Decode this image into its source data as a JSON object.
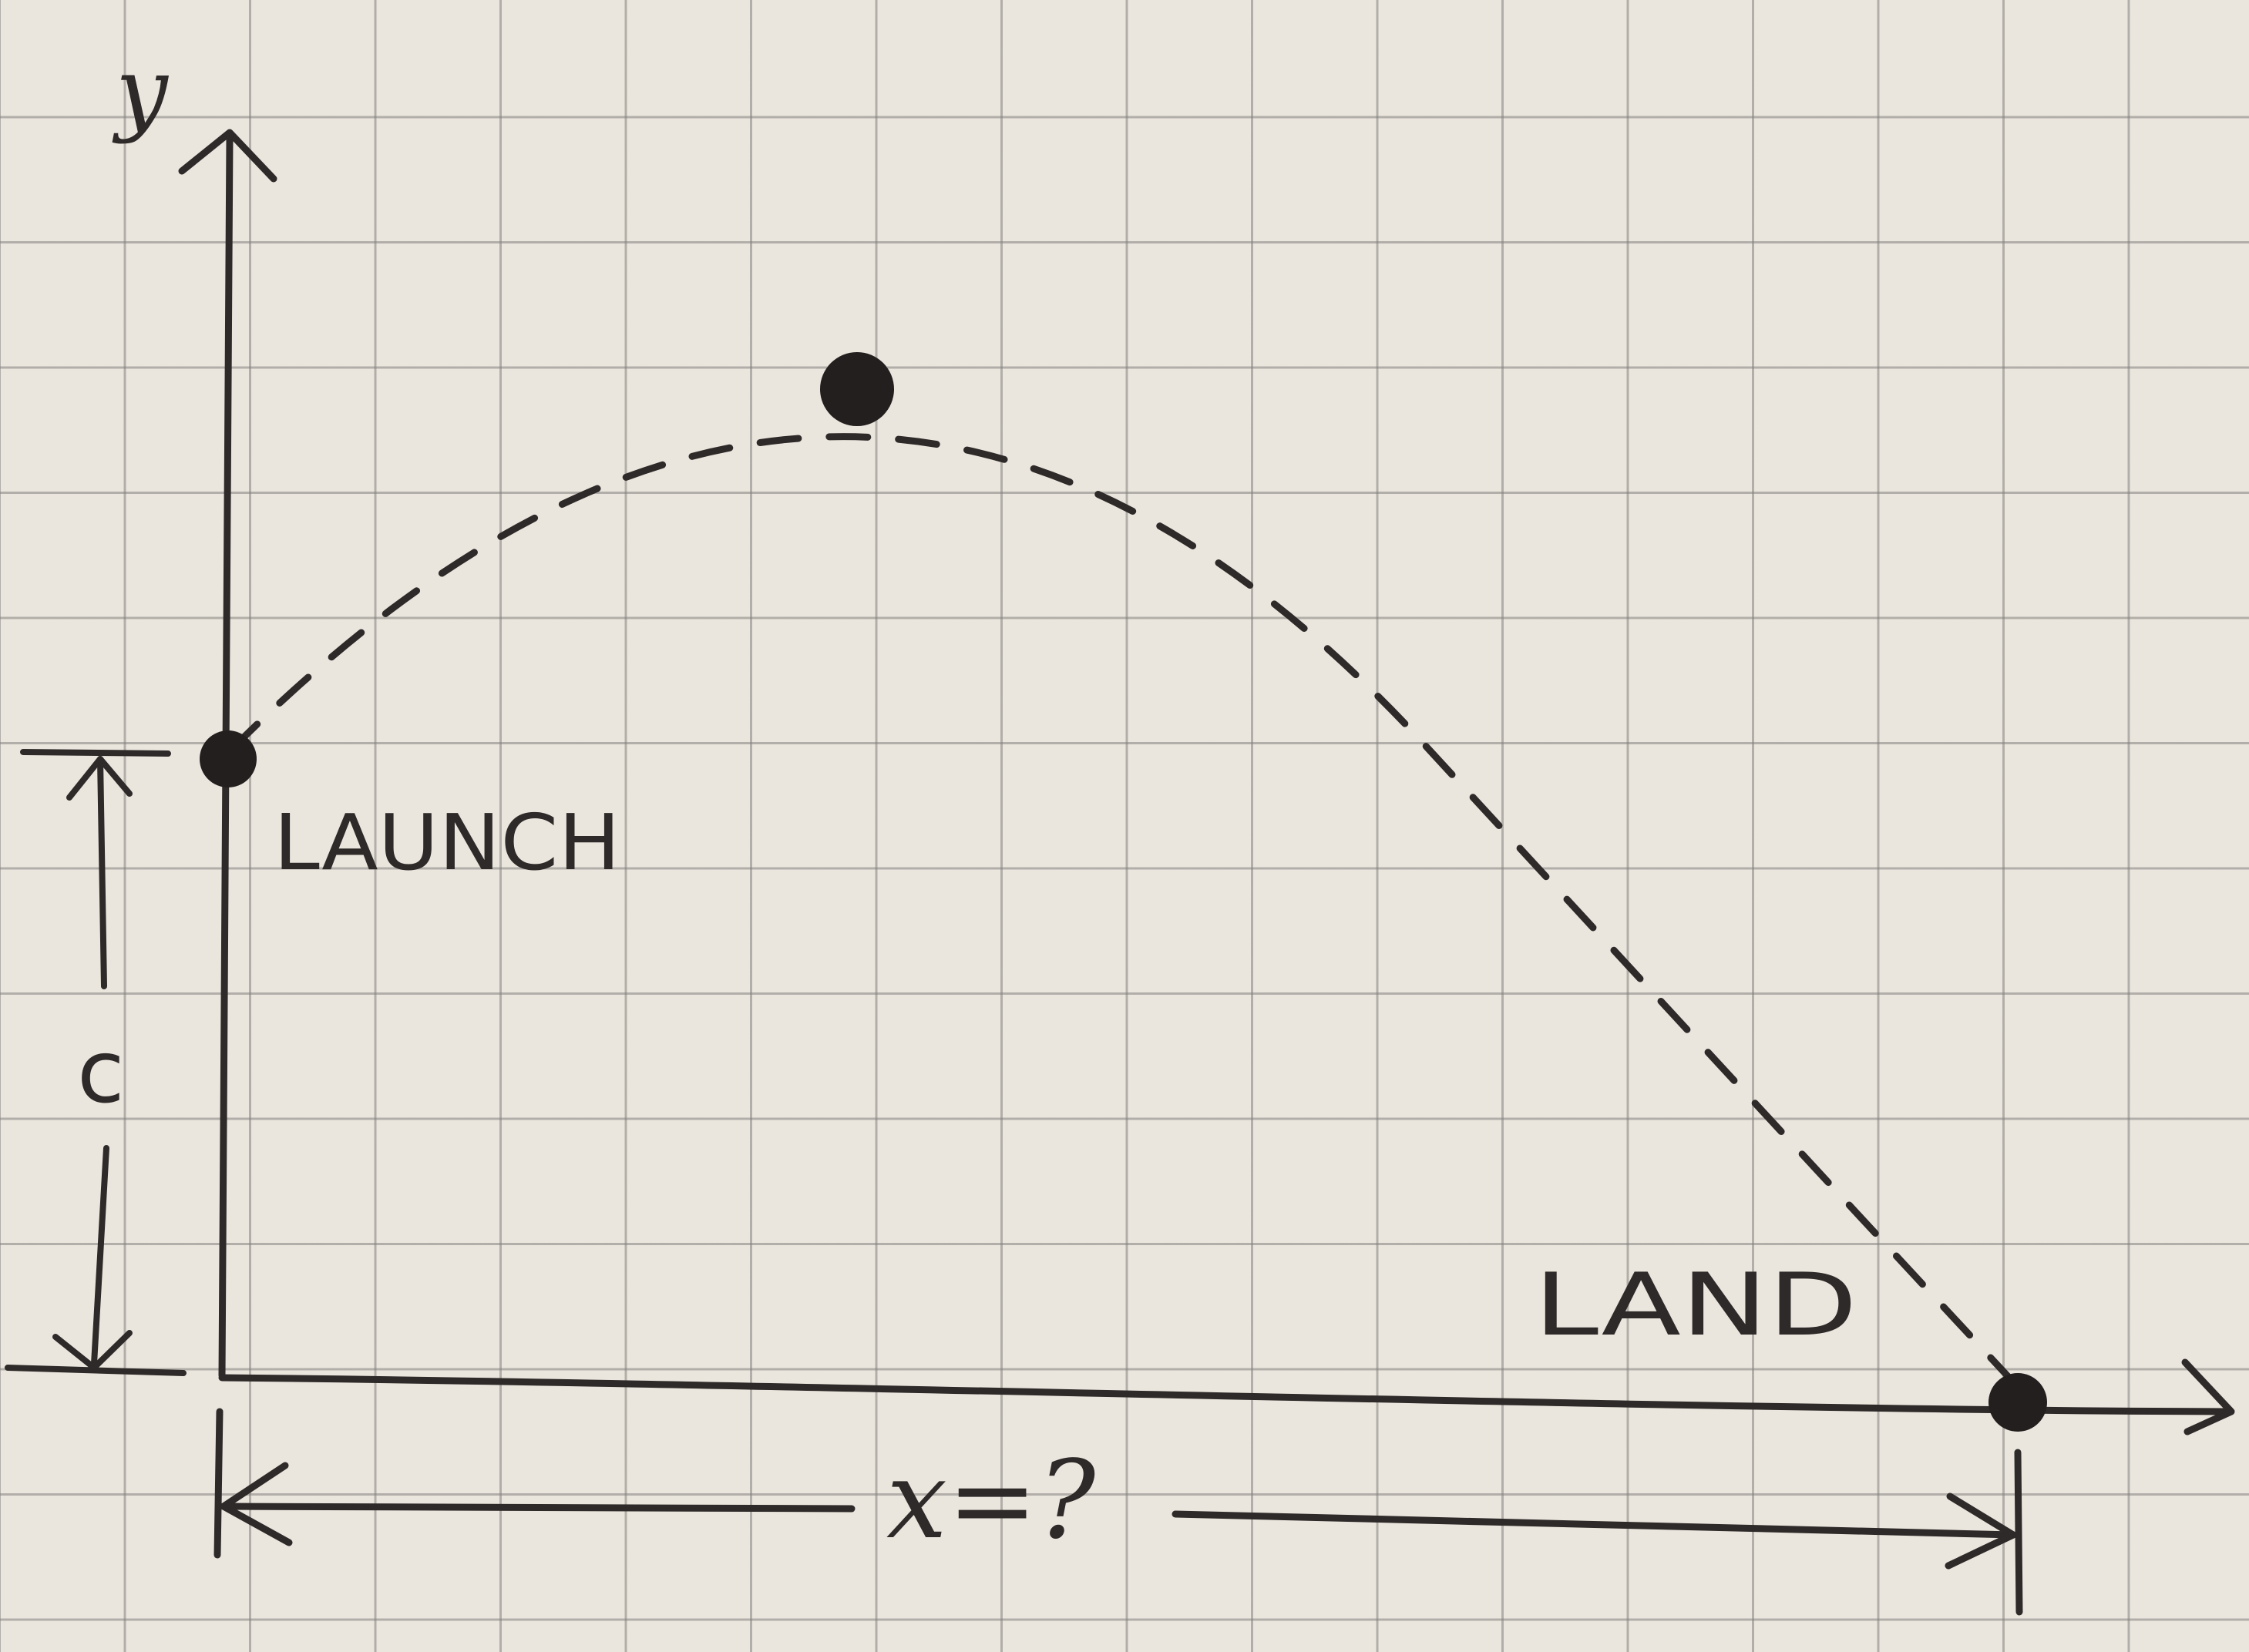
{
  "diagram": {
    "axes": {
      "y_label": "y"
    },
    "points": {
      "launch_label": "LAUNCH",
      "land_label": "LAND"
    },
    "dimensions": {
      "height_label": "c",
      "distance_label": "x=?"
    },
    "colors": {
      "ink": "#2e2a29",
      "paper": "#ebe6dd",
      "grid": "#8a8886"
    }
  }
}
